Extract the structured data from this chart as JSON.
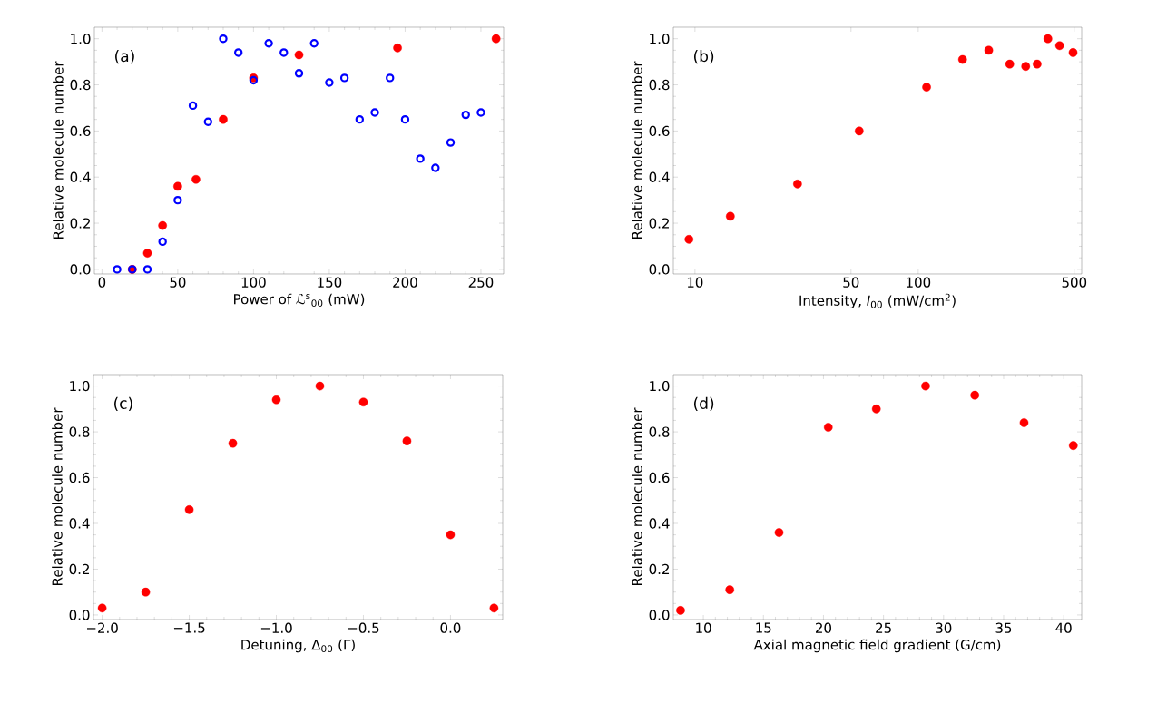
{
  "chart_data": [
    {
      "type": "scatter",
      "xlabel": "Power of ℒ$^{s}$$_{00}$ (mW)",
      "ylabel": "Relative molecule number",
      "annotations": [
        "(a)"
      ],
      "xlim": [
        -5,
        265
      ],
      "ylim": [
        -0.02,
        1.05
      ],
      "xticks": [
        0,
        50,
        100,
        150,
        200,
        250
      ],
      "yticks": [
        {
          "value": 0,
          "label": "0.0"
        },
        {
          "value": 0.2,
          "label": "0.2"
        },
        {
          "value": 0.4,
          "label": "0.4"
        },
        {
          "value": 0.6,
          "label": "0.6"
        },
        {
          "value": 0.8,
          "label": "0.8"
        },
        {
          "value": 1,
          "label": "1.0"
        }
      ],
      "series": [
        {
          "color": "#ff0000",
          "marker": "circle",
          "x": [
            20,
            30,
            40,
            50,
            62,
            80,
            100,
            130,
            195,
            260
          ],
          "values": [
            0,
            0.07,
            0.19,
            0.36,
            0.39,
            0.65,
            0.83,
            0.93,
            0.96,
            1.0
          ]
        },
        {
          "color": "#0000ff",
          "marker": "open circle",
          "x": [
            10,
            20,
            30,
            40,
            50,
            60,
            70,
            80,
            90,
            100,
            110,
            120,
            130,
            140,
            150,
            160,
            170,
            180,
            190,
            200,
            210,
            220,
            230,
            240,
            250
          ],
          "values": [
            0,
            0,
            0,
            0.12,
            0.3,
            0.71,
            0.64,
            1.0,
            0.94,
            0.82,
            0.98,
            0.94,
            0.85,
            0.98,
            0.81,
            0.83,
            0.65,
            0.68,
            0.83,
            0.65,
            0.48,
            0.44,
            0.55,
            0.67,
            0.68
          ]
        }
      ]
    },
    {
      "type": "scatter",
      "xlabel": "Intensity, *I*$_{00}$ (mW/cm$^{2}$)",
      "ylabel": "Relative molecule number",
      "annotations": [
        "(b)"
      ],
      "log": "x",
      "xlim": [
        8,
        540
      ],
      "ylim": [
        -0.02,
        1.05
      ],
      "xticks": [
        10,
        50,
        100,
        500
      ],
      "yticks": [
        {
          "value": 0,
          "label": "0.0"
        },
        {
          "value": 0.2,
          "label": "0.2"
        },
        {
          "value": 0.4,
          "label": "0.4"
        },
        {
          "value": 0.6,
          "label": "0.6"
        },
        {
          "value": 0.8,
          "label": "0.8"
        },
        {
          "value": 1,
          "label": "1.0"
        }
      ],
      "series": [
        {
          "color": "#ff0000",
          "marker": "circle",
          "x": [
            9.4,
            14.4,
            28.8,
            54.4,
            109,
            158,
            207,
            257,
            303,
            341,
            381,
            430,
            494
          ],
          "values": [
            0.13,
            0.23,
            0.37,
            0.6,
            0.79,
            0.91,
            0.95,
            0.89,
            0.88,
            0.89,
            1.0,
            0.97,
            0.94
          ]
        }
      ]
    },
    {
      "type": "scatter",
      "xlabel": "Detuning, Δ$_{00}$ (Γ)",
      "ylabel": "Relative molecule number",
      "annotations": [
        "(c)"
      ],
      "xlim": [
        -2.05,
        0.3
      ],
      "ylim": [
        -0.02,
        1.05
      ],
      "xticks": [
        {
          "value": -2,
          "label": "−2.0"
        },
        {
          "value": -1.5,
          "label": "−1.5"
        },
        {
          "value": -1,
          "label": "−1.0"
        },
        {
          "value": -0.5,
          "label": "−0.5"
        },
        {
          "value": 0,
          "label": "0.0"
        }
      ],
      "yticks": [
        {
          "value": 0,
          "label": "0.0"
        },
        {
          "value": 0.2,
          "label": "0.2"
        },
        {
          "value": 0.4,
          "label": "0.4"
        },
        {
          "value": 0.6,
          "label": "0.6"
        },
        {
          "value": 0.8,
          "label": "0.8"
        },
        {
          "value": 1,
          "label": "1.0"
        }
      ],
      "series": [
        {
          "color": "#ff0000",
          "marker": "circle",
          "x": [
            -2.0,
            -1.75,
            -1.5,
            -1.25,
            -1.0,
            -0.75,
            -0.5,
            -0.25,
            0,
            0.25
          ],
          "values": [
            0.03,
            0.1,
            0.46,
            0.75,
            0.94,
            1.0,
            0.93,
            0.76,
            0.35,
            0.03
          ]
        }
      ]
    },
    {
      "type": "scatter",
      "xlabel": "Axial magnetic field gradient (G/cm)",
      "ylabel": "Relative molecule number",
      "annotations": [
        "(d)"
      ],
      "xlim": [
        7.5,
        41.5
      ],
      "ylim": [
        -0.02,
        1.05
      ],
      "xticks": [
        10,
        15,
        20,
        25,
        30,
        35,
        40
      ],
      "yticks": [
        {
          "value": 0,
          "label": "0.0"
        },
        {
          "value": 0.2,
          "label": "0.2"
        },
        {
          "value": 0.4,
          "label": "0.4"
        },
        {
          "value": 0.6,
          "label": "0.6"
        },
        {
          "value": 0.8,
          "label": "0.8"
        },
        {
          "value": 1,
          "label": "1.0"
        }
      ],
      "series": [
        {
          "color": "#ff0000",
          "marker": "circle",
          "x": [
            8.1,
            12.2,
            16.3,
            20.4,
            24.4,
            28.5,
            32.6,
            36.7,
            40.8
          ],
          "values": [
            0.02,
            0.11,
            0.36,
            0.82,
            0.9,
            1.0,
            0.96,
            0.84,
            0.74
          ]
        }
      ]
    }
  ]
}
